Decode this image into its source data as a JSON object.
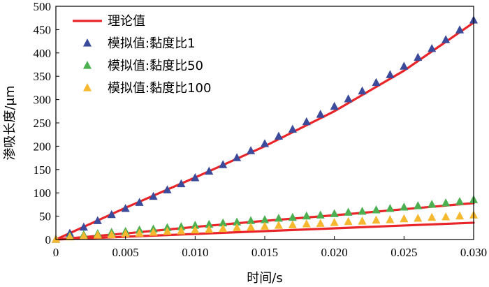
{
  "chart_data": {
    "type": "scatter",
    "xlabel": "时间/s",
    "ylabel": "渗吸长度/μm",
    "xlim": [
      0,
      0.03
    ],
    "ylim": [
      0,
      500
    ],
    "x_ticks": [
      "0",
      "0.005",
      "0.010",
      "0.015",
      "0.020",
      "0.025",
      "0.030"
    ],
    "y_ticks": [
      "0",
      "50",
      "100",
      "150",
      "200",
      "250",
      "300",
      "350",
      "400",
      "450",
      "500"
    ],
    "grid": false,
    "legend_position": "top-left",
    "theory": {
      "name": "理论值",
      "color": "#e8262a",
      "curves": [
        {
          "x": [
            0,
            0.005,
            0.01,
            0.015,
            0.02,
            0.025,
            0.03
          ],
          "y": [
            0,
            68,
            133,
            200,
            275,
            362,
            465
          ]
        },
        {
          "x": [
            0,
            0.005,
            0.01,
            0.015,
            0.02,
            0.025,
            0.03
          ],
          "y": [
            0,
            13,
            27,
            40,
            52,
            65,
            78
          ]
        },
        {
          "x": [
            0,
            0.005,
            0.01,
            0.015,
            0.02,
            0.025,
            0.03
          ],
          "y": [
            0,
            6,
            12,
            18,
            24,
            30,
            36
          ]
        }
      ]
    },
    "series": [
      {
        "name": "模拟值:黏度比1",
        "color": "#3b4a9a",
        "x": [
          0,
          0.001,
          0.002,
          0.003,
          0.004,
          0.005,
          0.006,
          0.007,
          0.008,
          0.009,
          0.01,
          0.011,
          0.012,
          0.013,
          0.014,
          0.015,
          0.016,
          0.017,
          0.018,
          0.019,
          0.02,
          0.021,
          0.022,
          0.023,
          0.024,
          0.025,
          0.026,
          0.027,
          0.028,
          0.029,
          0.03
        ],
        "y": [
          0,
          13,
          26,
          40,
          53,
          66,
          79,
          92,
          106,
          119,
          132,
          146,
          160,
          175,
          190,
          205,
          221,
          236,
          252,
          268,
          285,
          301,
          318,
          336,
          353,
          371,
          390,
          409,
          428,
          449,
          470
        ]
      },
      {
        "name": "模拟值:黏度比50",
        "color": "#4caf50",
        "x": [
          0,
          0.001,
          0.002,
          0.003,
          0.004,
          0.005,
          0.006,
          0.007,
          0.008,
          0.009,
          0.01,
          0.011,
          0.012,
          0.013,
          0.014,
          0.015,
          0.016,
          0.017,
          0.018,
          0.019,
          0.02,
          0.021,
          0.022,
          0.023,
          0.024,
          0.025,
          0.026,
          0.027,
          0.028,
          0.029,
          0.03
        ],
        "y": [
          0,
          7,
          10,
          12,
          15,
          17,
          20,
          22,
          25,
          27,
          30,
          32,
          35,
          37,
          40,
          42,
          45,
          47,
          50,
          52,
          55,
          58,
          60,
          63,
          66,
          69,
          72,
          75,
          78,
          81,
          85
        ]
      },
      {
        "name": "模拟值:黏度比100",
        "color": "#f5b82e",
        "x": [
          0,
          0.001,
          0.002,
          0.003,
          0.004,
          0.005,
          0.006,
          0.007,
          0.008,
          0.009,
          0.01,
          0.011,
          0.012,
          0.013,
          0.014,
          0.015,
          0.016,
          0.017,
          0.018,
          0.019,
          0.02,
          0.021,
          0.022,
          0.023,
          0.024,
          0.025,
          0.026,
          0.027,
          0.028,
          0.029,
          0.03
        ],
        "y": [
          0,
          5,
          7,
          9,
          10,
          12,
          13,
          15,
          17,
          18,
          20,
          21,
          23,
          25,
          26,
          28,
          30,
          31,
          33,
          34,
          36,
          38,
          39,
          41,
          42,
          44,
          45,
          47,
          48,
          50,
          52
        ]
      }
    ]
  }
}
